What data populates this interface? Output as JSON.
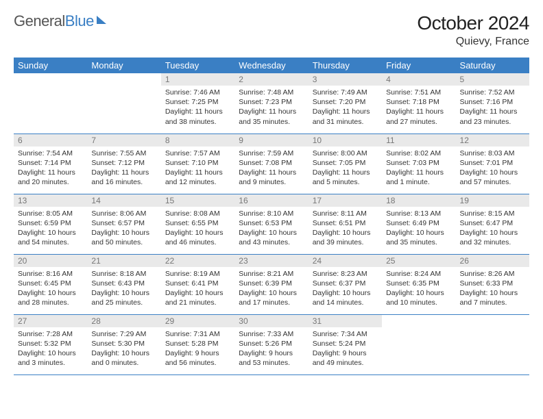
{
  "brand": {
    "part1": "General",
    "part2": "Blue"
  },
  "title": "October 2024",
  "location": "Quievy, France",
  "colors": {
    "accent": "#3a7fc4",
    "daynum_bg": "#e9e9e9",
    "daynum_fg": "#777777",
    "text": "#333333",
    "bg": "#ffffff"
  },
  "day_names": [
    "Sunday",
    "Monday",
    "Tuesday",
    "Wednesday",
    "Thursday",
    "Friday",
    "Saturday"
  ],
  "weeks": [
    [
      null,
      null,
      {
        "n": "1",
        "sunrise": "7:46 AM",
        "sunset": "7:25 PM",
        "daylight": "11 hours and 38 minutes."
      },
      {
        "n": "2",
        "sunrise": "7:48 AM",
        "sunset": "7:23 PM",
        "daylight": "11 hours and 35 minutes."
      },
      {
        "n": "3",
        "sunrise": "7:49 AM",
        "sunset": "7:20 PM",
        "daylight": "11 hours and 31 minutes."
      },
      {
        "n": "4",
        "sunrise": "7:51 AM",
        "sunset": "7:18 PM",
        "daylight": "11 hours and 27 minutes."
      },
      {
        "n": "5",
        "sunrise": "7:52 AM",
        "sunset": "7:16 PM",
        "daylight": "11 hours and 23 minutes."
      }
    ],
    [
      {
        "n": "6",
        "sunrise": "7:54 AM",
        "sunset": "7:14 PM",
        "daylight": "11 hours and 20 minutes."
      },
      {
        "n": "7",
        "sunrise": "7:55 AM",
        "sunset": "7:12 PM",
        "daylight": "11 hours and 16 minutes."
      },
      {
        "n": "8",
        "sunrise": "7:57 AM",
        "sunset": "7:10 PM",
        "daylight": "11 hours and 12 minutes."
      },
      {
        "n": "9",
        "sunrise": "7:59 AM",
        "sunset": "7:08 PM",
        "daylight": "11 hours and 9 minutes."
      },
      {
        "n": "10",
        "sunrise": "8:00 AM",
        "sunset": "7:05 PM",
        "daylight": "11 hours and 5 minutes."
      },
      {
        "n": "11",
        "sunrise": "8:02 AM",
        "sunset": "7:03 PM",
        "daylight": "11 hours and 1 minute."
      },
      {
        "n": "12",
        "sunrise": "8:03 AM",
        "sunset": "7:01 PM",
        "daylight": "10 hours and 57 minutes."
      }
    ],
    [
      {
        "n": "13",
        "sunrise": "8:05 AM",
        "sunset": "6:59 PM",
        "daylight": "10 hours and 54 minutes."
      },
      {
        "n": "14",
        "sunrise": "8:06 AM",
        "sunset": "6:57 PM",
        "daylight": "10 hours and 50 minutes."
      },
      {
        "n": "15",
        "sunrise": "8:08 AM",
        "sunset": "6:55 PM",
        "daylight": "10 hours and 46 minutes."
      },
      {
        "n": "16",
        "sunrise": "8:10 AM",
        "sunset": "6:53 PM",
        "daylight": "10 hours and 43 minutes."
      },
      {
        "n": "17",
        "sunrise": "8:11 AM",
        "sunset": "6:51 PM",
        "daylight": "10 hours and 39 minutes."
      },
      {
        "n": "18",
        "sunrise": "8:13 AM",
        "sunset": "6:49 PM",
        "daylight": "10 hours and 35 minutes."
      },
      {
        "n": "19",
        "sunrise": "8:15 AM",
        "sunset": "6:47 PM",
        "daylight": "10 hours and 32 minutes."
      }
    ],
    [
      {
        "n": "20",
        "sunrise": "8:16 AM",
        "sunset": "6:45 PM",
        "daylight": "10 hours and 28 minutes."
      },
      {
        "n": "21",
        "sunrise": "8:18 AM",
        "sunset": "6:43 PM",
        "daylight": "10 hours and 25 minutes."
      },
      {
        "n": "22",
        "sunrise": "8:19 AM",
        "sunset": "6:41 PM",
        "daylight": "10 hours and 21 minutes."
      },
      {
        "n": "23",
        "sunrise": "8:21 AM",
        "sunset": "6:39 PM",
        "daylight": "10 hours and 17 minutes."
      },
      {
        "n": "24",
        "sunrise": "8:23 AM",
        "sunset": "6:37 PM",
        "daylight": "10 hours and 14 minutes."
      },
      {
        "n": "25",
        "sunrise": "8:24 AM",
        "sunset": "6:35 PM",
        "daylight": "10 hours and 10 minutes."
      },
      {
        "n": "26",
        "sunrise": "8:26 AM",
        "sunset": "6:33 PM",
        "daylight": "10 hours and 7 minutes."
      }
    ],
    [
      {
        "n": "27",
        "sunrise": "7:28 AM",
        "sunset": "5:32 PM",
        "daylight": "10 hours and 3 minutes."
      },
      {
        "n": "28",
        "sunrise": "7:29 AM",
        "sunset": "5:30 PM",
        "daylight": "10 hours and 0 minutes."
      },
      {
        "n": "29",
        "sunrise": "7:31 AM",
        "sunset": "5:28 PM",
        "daylight": "9 hours and 56 minutes."
      },
      {
        "n": "30",
        "sunrise": "7:33 AM",
        "sunset": "5:26 PM",
        "daylight": "9 hours and 53 minutes."
      },
      {
        "n": "31",
        "sunrise": "7:34 AM",
        "sunset": "5:24 PM",
        "daylight": "9 hours and 49 minutes."
      },
      null,
      null
    ]
  ],
  "labels": {
    "sunrise_prefix": "Sunrise: ",
    "sunset_prefix": "Sunset: ",
    "daylight_prefix": "Daylight: "
  }
}
